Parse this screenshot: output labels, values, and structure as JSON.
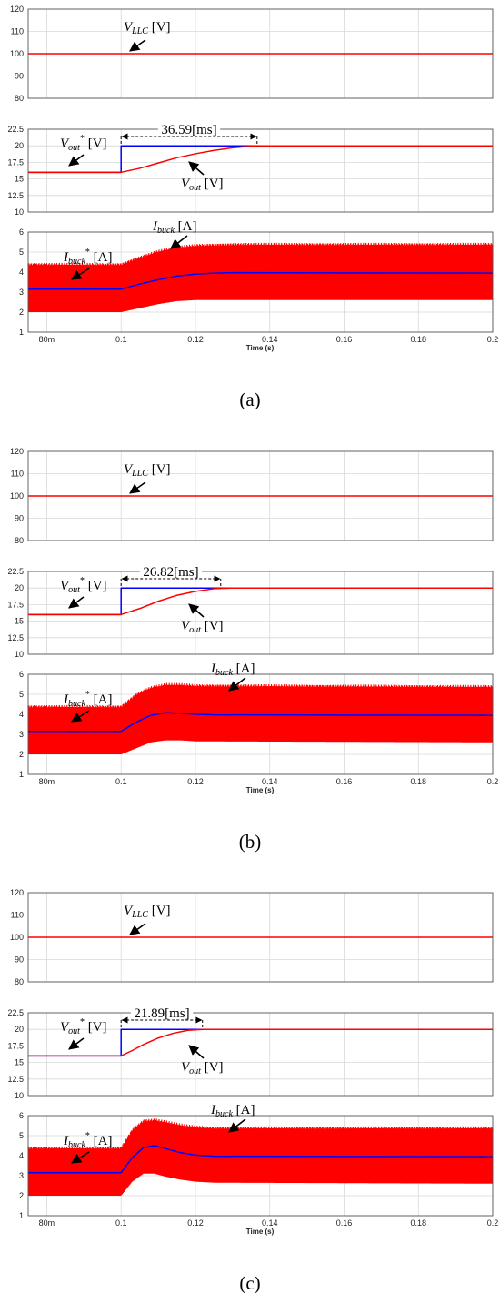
{
  "colors": {
    "trace_red": "#ff0000",
    "trace_blue": "#0000ff",
    "grid": "#d8d8d8",
    "frame": "#555555"
  },
  "x_axis": {
    "label": "Time (s)",
    "ticks": [
      0.08,
      0.1,
      0.12,
      0.14,
      0.16,
      0.18,
      0.2
    ],
    "tick_labels": [
      "80m",
      "0.1",
      "0.12",
      "0.14",
      "0.16",
      "0.18",
      "0.2"
    ],
    "xlim": [
      0.075,
      0.2
    ]
  },
  "chart_data": [
    {
      "type": "line",
      "caption": "(a)",
      "panels": [
        {
          "ylim": [
            80,
            120
          ],
          "y_ticks": [
            80,
            90,
            100,
            110,
            120
          ],
          "y_tick_labels": [
            "80",
            "90",
            "100",
            "110",
            "120"
          ],
          "series": [
            {
              "name": "V_LLC [V]",
              "color": "#ff0000",
              "x": [
                0.075,
                0.2
              ],
              "y": [
                100,
                100
              ]
            }
          ]
        },
        {
          "ylim": [
            10,
            22.5
          ],
          "y_ticks": [
            10,
            12.5,
            15,
            17.5,
            20,
            22.5
          ],
          "y_tick_labels": [
            "10",
            "12.5",
            "15",
            "17.5",
            "20",
            "22.5"
          ],
          "settling_label": "36.59[ms]",
          "step_time": 0.1,
          "settling_time": 0.1366,
          "series": [
            {
              "name": "Vout* [V]",
              "color": "#0000ff",
              "x": [
                0.075,
                0.1,
                0.1,
                0.2
              ],
              "y": [
                16,
                16,
                20,
                20
              ]
            },
            {
              "name": "Vout [V]",
              "color": "#ff0000",
              "x": [
                0.075,
                0.1,
                0.105,
                0.11,
                0.115,
                0.12,
                0.125,
                0.13,
                0.135,
                0.14,
                0.2
              ],
              "y": [
                16,
                16,
                16.6,
                17.4,
                18.2,
                18.8,
                19.3,
                19.7,
                19.95,
                20,
                20
              ]
            }
          ]
        },
        {
          "ylim": [
            1,
            6
          ],
          "y_ticks": [
            1,
            2,
            3,
            4,
            5,
            6
          ],
          "y_tick_labels": [
            "1",
            "2",
            "3",
            "4",
            "5",
            "6"
          ],
          "series": [
            {
              "name": "Ibuck [A]",
              "color": "#ff0000",
              "render": "ripple_band",
              "x": [
                0.075,
                0.1,
                0.105,
                0.11,
                0.115,
                0.12,
                0.13,
                0.2
              ],
              "y_max": [
                4.4,
                4.4,
                4.75,
                5.05,
                5.25,
                5.35,
                5.4,
                5.4
              ],
              "y_min": [
                2.0,
                2.0,
                2.2,
                2.4,
                2.55,
                2.6,
                2.6,
                2.6
              ]
            },
            {
              "name": "Ibuck* [A]",
              "color": "#0000ff",
              "x": [
                0.075,
                0.1,
                0.105,
                0.11,
                0.115,
                0.12,
                0.125,
                0.13,
                0.2
              ],
              "y": [
                3.15,
                3.15,
                3.4,
                3.62,
                3.8,
                3.9,
                3.95,
                3.97,
                3.95
              ]
            }
          ]
        }
      ]
    },
    {
      "type": "line",
      "caption": "(b)",
      "panels": [
        {
          "ylim": [
            80,
            120
          ],
          "y_ticks": [
            80,
            90,
            100,
            110,
            120
          ],
          "y_tick_labels": [
            "80",
            "90",
            "100",
            "110",
            "120"
          ],
          "series": [
            {
              "name": "V_LLC [V]",
              "color": "#ff0000",
              "x": [
                0.075,
                0.2
              ],
              "y": [
                100,
                100
              ]
            }
          ]
        },
        {
          "ylim": [
            10,
            22.5
          ],
          "y_ticks": [
            10,
            12.5,
            15,
            17.5,
            20,
            22.5
          ],
          "y_tick_labels": [
            "10",
            "12.5",
            "15",
            "17.5",
            "20",
            "22.5"
          ],
          "settling_label": "26.82[ms]",
          "step_time": 0.1,
          "settling_time": 0.1268,
          "series": [
            {
              "name": "Vout* [V]",
              "color": "#0000ff",
              "x": [
                0.075,
                0.1,
                0.1,
                0.2
              ],
              "y": [
                16,
                16,
                20,
                20
              ]
            },
            {
              "name": "Vout [V]",
              "color": "#ff0000",
              "x": [
                0.075,
                0.1,
                0.105,
                0.11,
                0.115,
                0.12,
                0.125,
                0.13,
                0.2
              ],
              "y": [
                16,
                16,
                16.9,
                18.0,
                18.9,
                19.5,
                19.9,
                20,
                20
              ]
            }
          ]
        },
        {
          "ylim": [
            1,
            6
          ],
          "y_ticks": [
            1,
            2,
            3,
            4,
            5,
            6
          ],
          "y_tick_labels": [
            "1",
            "2",
            "3",
            "4",
            "5",
            "6"
          ],
          "series": [
            {
              "name": "Ibuck [A]",
              "color": "#ff0000",
              "render": "ripple_band",
              "x": [
                0.075,
                0.1,
                0.104,
                0.108,
                0.112,
                0.116,
                0.12,
                0.2
              ],
              "y_max": [
                4.4,
                4.4,
                5.0,
                5.35,
                5.5,
                5.5,
                5.45,
                5.4
              ],
              "y_min": [
                2.0,
                2.0,
                2.3,
                2.6,
                2.7,
                2.7,
                2.65,
                2.6
              ]
            },
            {
              "name": "Ibuck* [A]",
              "color": "#0000ff",
              "x": [
                0.075,
                0.1,
                0.104,
                0.108,
                0.112,
                0.116,
                0.12,
                0.125,
                0.2
              ],
              "y": [
                3.15,
                3.15,
                3.6,
                3.95,
                4.08,
                4.05,
                4.0,
                3.97,
                3.95
              ]
            }
          ]
        }
      ]
    },
    {
      "type": "line",
      "caption": "(c)",
      "panels": [
        {
          "ylim": [
            80,
            120
          ],
          "y_ticks": [
            80,
            90,
            100,
            110,
            120
          ],
          "y_tick_labels": [
            "80",
            "90",
            "100",
            "110",
            "120"
          ],
          "series": [
            {
              "name": "V_LLC [V]",
              "color": "#ff0000",
              "x": [
                0.075,
                0.2
              ],
              "y": [
                100,
                100
              ]
            }
          ]
        },
        {
          "ylim": [
            10,
            22.5
          ],
          "y_ticks": [
            10,
            12.5,
            15,
            17.5,
            20,
            22.5
          ],
          "y_tick_labels": [
            "10",
            "12.5",
            "15",
            "17.5",
            "20",
            "22.5"
          ],
          "settling_label": "21.89[ms]",
          "step_time": 0.1,
          "settling_time": 0.1219,
          "series": [
            {
              "name": "Vout* [V]",
              "color": "#0000ff",
              "x": [
                0.075,
                0.1,
                0.1,
                0.2
              ],
              "y": [
                16,
                16,
                20,
                20
              ]
            },
            {
              "name": "Vout [V]",
              "color": "#ff0000",
              "x": [
                0.075,
                0.1,
                0.103,
                0.106,
                0.11,
                0.114,
                0.118,
                0.122,
                0.2
              ],
              "y": [
                16,
                16,
                16.8,
                17.7,
                18.7,
                19.4,
                19.85,
                20,
                20
              ]
            }
          ]
        },
        {
          "ylim": [
            1,
            6
          ],
          "y_ticks": [
            1,
            2,
            3,
            4,
            5,
            6
          ],
          "y_tick_labels": [
            "1",
            "2",
            "3",
            "4",
            "5",
            "6"
          ],
          "series": [
            {
              "name": "Ibuck [A]",
              "color": "#ff0000",
              "render": "ripple_band",
              "x": [
                0.075,
                0.1,
                0.103,
                0.106,
                0.109,
                0.112,
                0.116,
                0.12,
                0.125,
                0.2
              ],
              "y_max": [
                4.4,
                4.4,
                5.3,
                5.75,
                5.8,
                5.7,
                5.55,
                5.45,
                5.4,
                5.4
              ],
              "y_min": [
                2.0,
                2.0,
                2.7,
                3.1,
                3.1,
                2.95,
                2.8,
                2.7,
                2.65,
                2.6
              ]
            },
            {
              "name": "Ibuck* [A]",
              "color": "#0000ff",
              "x": [
                0.075,
                0.1,
                0.103,
                0.106,
                0.109,
                0.112,
                0.116,
                0.12,
                0.125,
                0.2
              ],
              "y": [
                3.15,
                3.15,
                3.9,
                4.4,
                4.5,
                4.35,
                4.15,
                4.03,
                3.97,
                3.95
              ]
            }
          ]
        }
      ]
    }
  ]
}
